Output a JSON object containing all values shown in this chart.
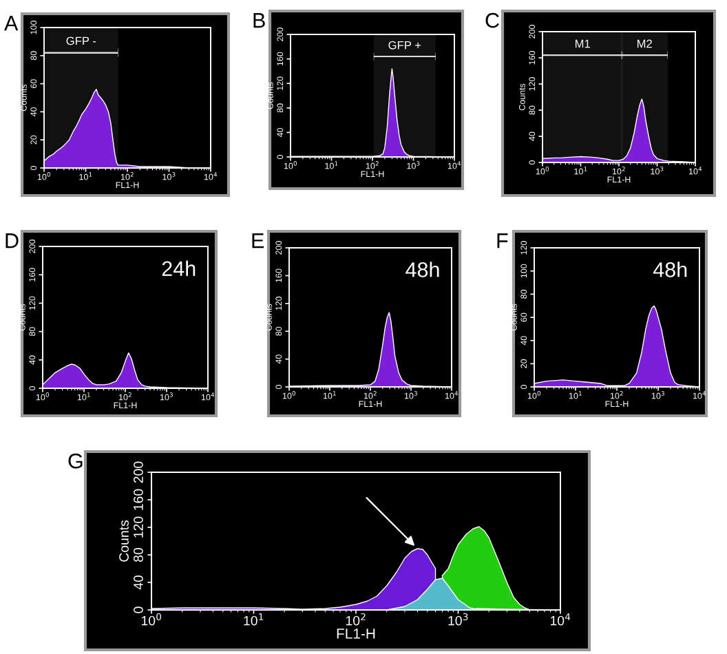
{
  "chart_data": [
    {
      "type": "area",
      "title": "A",
      "xlabel": "FL1-H",
      "ylabel": "Counts",
      "log": "x",
      "grid": false,
      "xlim": [
        1,
        10000
      ],
      "ylim": [
        0,
        100
      ],
      "xticks": [
        {
          "value": 1,
          "label": "10$^{0}$"
        },
        {
          "value": 10,
          "label": "10$^{1}$"
        },
        {
          "value": 100,
          "label": "10$^{2}$"
        },
        {
          "value": 1000,
          "label": "10$^{3}$"
        },
        {
          "value": 10000,
          "label": "10$^{4}$"
        }
      ],
      "yticks": [
        0,
        20,
        40,
        60,
        80,
        100
      ],
      "bands": [
        {
          "axis": "x",
          "from": 1,
          "to": 60,
          "label": "GFP -",
          "color": "#dddddd"
        }
      ],
      "series": [
        {
          "color": "#7b1fd8",
          "x": [
            1,
            1.3,
            1.7,
            2,
            2.5,
            3,
            4,
            5,
            6,
            7,
            8,
            10,
            12,
            14,
            16,
            18,
            20,
            23,
            26,
            30,
            35,
            40,
            45,
            50,
            55,
            60,
            70,
            100,
            200,
            500,
            1000,
            3000,
            10000
          ],
          "values": [
            5,
            8,
            10,
            12,
            14,
            16,
            20,
            26,
            30,
            34,
            38,
            42,
            46,
            50,
            54,
            56,
            52,
            50,
            48,
            45,
            40,
            32,
            20,
            10,
            4,
            2,
            2,
            2,
            1,
            1,
            1,
            0,
            0
          ]
        }
      ]
    },
    {
      "type": "area",
      "title": "B",
      "xlabel": "FL1-H",
      "ylabel": "Counts",
      "log": "x",
      "grid": false,
      "xlim": [
        1,
        10000
      ],
      "ylim": [
        0,
        200
      ],
      "xticks": [
        {
          "value": 1,
          "label": "10$^{0}$"
        },
        {
          "value": 10,
          "label": "10$^{1}$"
        },
        {
          "value": 100,
          "label": "10$^{2}$"
        },
        {
          "value": 1000,
          "label": "10$^{3}$"
        },
        {
          "value": 10000,
          "label": "10$^{4}$"
        }
      ],
      "yticks": [
        0,
        40,
        80,
        120,
        160,
        200
      ],
      "bands": [
        {
          "axis": "x",
          "from": 107,
          "to": 3500,
          "label": "GFP +",
          "color": "#dddddd"
        }
      ],
      "series": [
        {
          "color": "#7b1fd8",
          "x": [
            1,
            10,
            100,
            150,
            180,
            200,
            230,
            260,
            290,
            300,
            320,
            350,
            400,
            450,
            500,
            600,
            700,
            800,
            1000,
            10000
          ],
          "values": [
            1,
            1,
            1,
            2,
            5,
            15,
            50,
            100,
            135,
            144,
            130,
            100,
            60,
            35,
            20,
            8,
            4,
            2,
            1,
            0
          ]
        }
      ]
    },
    {
      "type": "area",
      "title": "C",
      "xlabel": "FL1-H",
      "ylabel": "Counts",
      "log": "x",
      "grid": false,
      "xlim": [
        1,
        10000
      ],
      "ylim": [
        0,
        200
      ],
      "xticks": [
        {
          "value": 1,
          "label": "10$^{0}$"
        },
        {
          "value": 10,
          "label": "10$^{1}$"
        },
        {
          "value": 100,
          "label": "10$^{2}$"
        },
        {
          "value": 1000,
          "label": "10$^{3}$"
        },
        {
          "value": 10000,
          "label": "10$^{4}$"
        }
      ],
      "yticks": [
        0,
        40,
        80,
        120,
        160,
        200
      ],
      "bands": [
        {
          "axis": "x",
          "from": 1,
          "to": 125,
          "label": "M1",
          "color": "#dddddd"
        },
        {
          "axis": "x",
          "from": 115,
          "to": 1900,
          "label": "M2",
          "color": "#dddddd"
        }
      ],
      "series": [
        {
          "color": "#7b1fd8",
          "x": [
            1,
            2,
            3,
            5,
            10,
            20,
            30,
            50,
            70,
            100,
            130,
            160,
            200,
            250,
            300,
            350,
            400,
            450,
            500,
            600,
            700,
            800,
            1000,
            1500,
            2000,
            5000,
            10000
          ],
          "values": [
            6,
            7,
            7,
            8,
            9,
            8,
            7,
            5,
            3,
            3,
            5,
            10,
            22,
            45,
            70,
            88,
            97,
            85,
            65,
            40,
            22,
            12,
            6,
            3,
            2,
            1,
            0
          ]
        }
      ]
    },
    {
      "type": "area",
      "title": "D",
      "xlabel": "FL1-H",
      "ylabel": "Counts",
      "log": "x",
      "grid": false,
      "xlim": [
        1,
        10000
      ],
      "ylim": [
        0,
        200
      ],
      "xticks": [
        {
          "value": 1,
          "label": "10$^{0}$"
        },
        {
          "value": 10,
          "label": "10$^{1}$"
        },
        {
          "value": 100,
          "label": "10$^{2}$"
        },
        {
          "value": 1000,
          "label": "10$^{3}$"
        },
        {
          "value": 10000,
          "label": "10$^{4}$"
        }
      ],
      "yticks": [
        0,
        40,
        80,
        120,
        160,
        200
      ],
      "annotations": [
        "24h"
      ],
      "series": [
        {
          "color": "#7b1fd8",
          "x": [
            1,
            1.5,
            2,
            3,
            4,
            5,
            6,
            8,
            10,
            13,
            16,
            20,
            30,
            40,
            60,
            80,
            100,
            120,
            140,
            170,
            200,
            250,
            300,
            400,
            1000,
            10000
          ],
          "values": [
            5,
            15,
            22,
            28,
            32,
            34,
            33,
            28,
            20,
            12,
            7,
            5,
            5,
            6,
            10,
            22,
            38,
            50,
            42,
            25,
            12,
            5,
            3,
            2,
            1,
            0
          ]
        }
      ]
    },
    {
      "type": "area",
      "title": "E",
      "xlabel": "FL1-H",
      "ylabel": "Counts",
      "log": "x",
      "grid": false,
      "xlim": [
        1,
        10000
      ],
      "ylim": [
        0,
        200
      ],
      "xticks": [
        {
          "value": 1,
          "label": "10$^{0}$"
        },
        {
          "value": 10,
          "label": "10$^{1}$"
        },
        {
          "value": 100,
          "label": "10$^{2}$"
        },
        {
          "value": 1000,
          "label": "10$^{3}$"
        },
        {
          "value": 10000,
          "label": "10$^{4}$"
        }
      ],
      "yticks": [
        0,
        40,
        80,
        120,
        160,
        200
      ],
      "annotations": [
        "48h"
      ],
      "series": [
        {
          "color": "#7b1fd8",
          "x": [
            1,
            10,
            50,
            100,
            130,
            160,
            200,
            230,
            260,
            290,
            320,
            360,
            400,
            500,
            600,
            800,
            1000,
            2000,
            10000
          ],
          "values": [
            1,
            2,
            2,
            3,
            8,
            25,
            60,
            85,
            100,
            107,
            95,
            70,
            45,
            20,
            10,
            4,
            2,
            1,
            0
          ]
        }
      ]
    },
    {
      "type": "area",
      "title": "F",
      "xlabel": "FL1-H",
      "ylabel": "Counts",
      "log": "x",
      "grid": false,
      "xlim": [
        1,
        10000
      ],
      "ylim": [
        0,
        120
      ],
      "xticks": [
        {
          "value": 1,
          "label": "10$^{0}$"
        },
        {
          "value": 10,
          "label": "10$^{1}$"
        },
        {
          "value": 100,
          "label": "10$^{2}$"
        },
        {
          "value": 1000,
          "label": "10$^{3}$"
        },
        {
          "value": 10000,
          "label": "10$^{4}$"
        }
      ],
      "yticks": [
        0,
        20,
        40,
        60,
        80,
        100,
        120
      ],
      "annotations": [
        "48h"
      ],
      "series": [
        {
          "color": "#7b1fd8",
          "x": [
            1,
            2,
            5,
            10,
            20,
            40,
            60,
            100,
            150,
            200,
            300,
            400,
            500,
            600,
            700,
            800,
            900,
            1000,
            1200,
            1500,
            2000,
            2500,
            3000,
            5000,
            10000
          ],
          "values": [
            3,
            5,
            6,
            5,
            4,
            3,
            1,
            1,
            1,
            3,
            12,
            30,
            50,
            62,
            68,
            70,
            66,
            60,
            50,
            32,
            12,
            4,
            2,
            1,
            0
          ]
        }
      ]
    },
    {
      "type": "area",
      "title": "G",
      "xlabel": "FL1-H",
      "ylabel": "Counts",
      "log": "x",
      "grid": false,
      "xlim": [
        1,
        10000
      ],
      "ylim": [
        0,
        200
      ],
      "xticks": [
        {
          "value": 1,
          "label": "10$^{0}$"
        },
        {
          "value": 10,
          "label": "10$^{1}$"
        },
        {
          "value": 100,
          "label": "10$^{2}$"
        },
        {
          "value": 1000,
          "label": "10$^{3}$"
        },
        {
          "value": 10000,
          "label": "10$^{4}$"
        }
      ],
      "yticks": [
        0,
        40,
        80,
        120,
        160,
        200
      ],
      "series": [
        {
          "color": "#22cc11",
          "x": [
            700,
            800,
            900,
            1000,
            1200,
            1400,
            1600,
            1800,
            2000,
            2500,
            3000,
            3500,
            4000,
            4500,
            5000
          ],
          "values": [
            50,
            60,
            80,
            95,
            110,
            118,
            121,
            115,
            105,
            70,
            40,
            18,
            8,
            3,
            0
          ]
        },
        {
          "color": "#6a1bd8",
          "x": [
            1,
            2,
            5,
            10,
            20,
            30,
            50,
            70,
            100,
            130,
            160,
            200,
            250,
            300,
            350,
            400,
            450,
            500,
            600,
            700,
            800,
            1000,
            1500,
            3000,
            10000
          ],
          "values": [
            2,
            3,
            3,
            3,
            2,
            1,
            2,
            4,
            8,
            13,
            20,
            35,
            55,
            75,
            85,
            89,
            88,
            80,
            60,
            null,
            null,
            null,
            2,
            1,
            0
          ]
        },
        {
          "color": "#55bbcc",
          "x": [
            200,
            300,
            400,
            500,
            600,
            700,
            800,
            1000,
            1300,
            1600
          ],
          "values": [
            0,
            5,
            15,
            30,
            44,
            46,
            35,
            15,
            3,
            0
          ]
        }
      ]
    }
  ]
}
